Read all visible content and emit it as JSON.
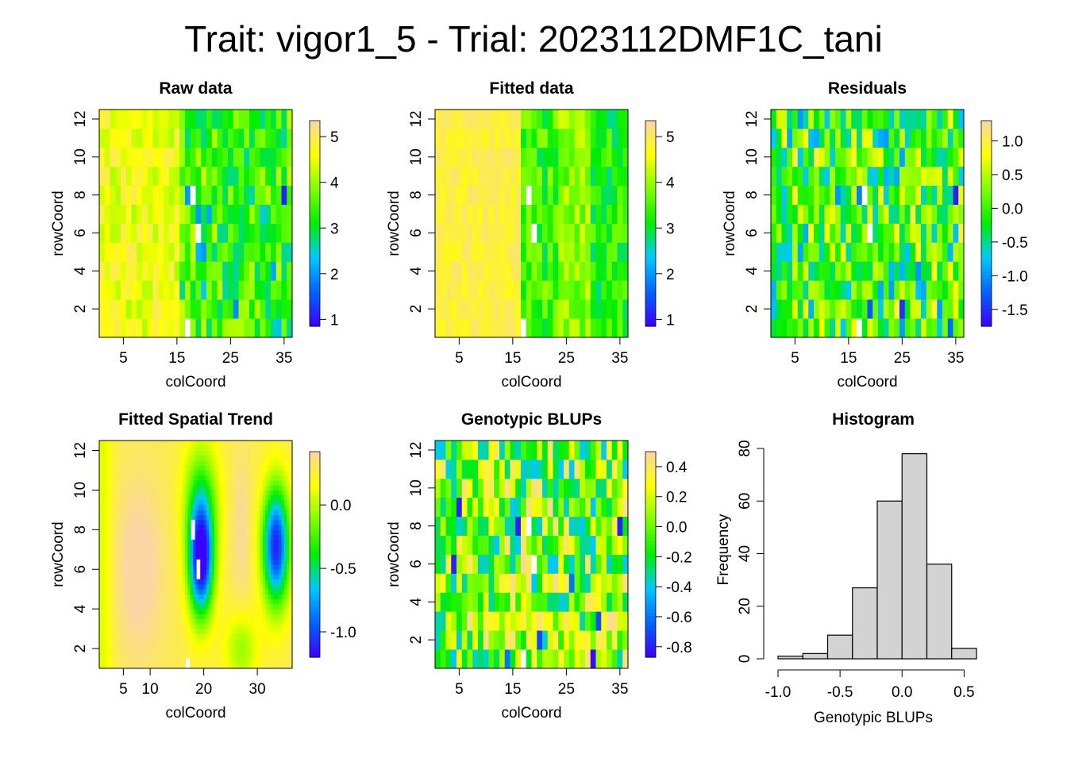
{
  "page": {
    "main_title": "Trait: vigor1_5 - Trial: 2023112DMF1C_tani"
  },
  "colors": {
    "ramp": [
      "#FAD6A5",
      "#FFFF00",
      "#7FFF00",
      "#00EE00",
      "#00C8FF",
      "#0064FF",
      "#3C00FF"
    ],
    "missing": "#FFFFFF",
    "histogram_fill": "#D3D3D3"
  },
  "chart_data": [
    {
      "id": "raw",
      "type": "heatmap",
      "title": "Raw data",
      "xlabel": "colCoord",
      "ylabel": "rowCoord",
      "xlim": [
        0.5,
        36.5
      ],
      "ylim": [
        0.5,
        12.5
      ],
      "x_ticks": [
        5,
        15,
        25,
        35
      ],
      "y_ticks": [
        2,
        4,
        6,
        8,
        10,
        12
      ],
      "ncols": 36,
      "nrows": 12,
      "legend_range": [
        0.85,
        5.35
      ],
      "legend_ticks": [
        {
          "v": 1,
          "label": "1"
        },
        {
          "v": 2,
          "label": "2"
        },
        {
          "v": 3,
          "label": "3"
        },
        {
          "v": 4,
          "label": "4"
        },
        {
          "v": 5,
          "label": "5"
        }
      ],
      "missing_cells": [
        [
          17,
          1
        ],
        [
          18,
          8
        ],
        [
          19,
          6
        ]
      ],
      "low_cells": [
        [
          17,
          8,
          2.0
        ],
        [
          19,
          7,
          2.0
        ],
        [
          21,
          7,
          2.1
        ],
        [
          20,
          5,
          2.0
        ],
        [
          19,
          5,
          2.2
        ],
        [
          26,
          2,
          1.9
        ],
        [
          33,
          4,
          2.1
        ],
        [
          34,
          1,
          2.3
        ],
        [
          35,
          8,
          1.1
        ],
        [
          20,
          3,
          2.4
        ],
        [
          31,
          7,
          2.4
        ]
      ]
    },
    {
      "id": "fitted",
      "type": "heatmap",
      "title": "Fitted data",
      "xlabel": "colCoord",
      "ylabel": "rowCoord",
      "xlim": [
        0.5,
        36.5
      ],
      "ylim": [
        0.5,
        12.5
      ],
      "x_ticks": [
        5,
        15,
        25,
        35
      ],
      "y_ticks": [
        2,
        4,
        6,
        8,
        10,
        12
      ],
      "ncols": 36,
      "nrows": 12,
      "legend_range": [
        0.85,
        5.35
      ],
      "legend_ticks": [
        {
          "v": 1,
          "label": "1"
        },
        {
          "v": 2,
          "label": "2"
        },
        {
          "v": 3,
          "label": "3"
        },
        {
          "v": 4,
          "label": "4"
        },
        {
          "v": 5,
          "label": "5"
        }
      ],
      "missing_cells": [
        [
          17,
          1
        ],
        [
          18,
          8
        ],
        [
          19,
          6
        ]
      ],
      "low_cells": []
    },
    {
      "id": "residuals",
      "type": "heatmap",
      "title": "Residuals",
      "xlabel": "colCoord",
      "ylabel": "rowCoord",
      "xlim": [
        0.5,
        36.5
      ],
      "ylim": [
        0.5,
        12.5
      ],
      "x_ticks": [
        5,
        15,
        25,
        35
      ],
      "y_ticks": [
        2,
        4,
        6,
        8,
        10,
        12
      ],
      "ncols": 36,
      "nrows": 12,
      "legend_range": [
        -1.75,
        1.3
      ],
      "legend_ticks": [
        {
          "v": 1.0,
          "label": "1.0"
        },
        {
          "v": 0.5,
          "label": "0.5"
        },
        {
          "v": 0.0,
          "label": "0.0"
        },
        {
          "v": -0.5,
          "label": "-0.5"
        },
        {
          "v": -1.0,
          "label": "-1.0"
        },
        {
          "v": -1.5,
          "label": "-1.5"
        }
      ],
      "missing_cells": [
        [
          17,
          1
        ],
        [
          18,
          8
        ],
        [
          19,
          6
        ]
      ],
      "low_cells": [
        [
          13,
          8,
          -1.0
        ],
        [
          17,
          8,
          -1.1
        ],
        [
          35,
          8,
          -1.6
        ],
        [
          19,
          2,
          -1.3
        ],
        [
          25,
          2,
          -1.5
        ],
        [
          34,
          1,
          -1.2
        ],
        [
          28,
          4,
          -1.0
        ],
        [
          29,
          3,
          -0.9
        ]
      ]
    },
    {
      "id": "spatial",
      "type": "heatmap",
      "title": "Fitted Spatial Trend",
      "xlabel": "colCoord",
      "ylabel": "rowCoord",
      "xlim": [
        0.5,
        36.5
      ],
      "ylim": [
        1,
        12.5
      ],
      "x_ticks": [
        5,
        10,
        20,
        30
      ],
      "y_ticks": [
        2,
        4,
        6,
        8,
        10,
        12
      ],
      "legend_range": [
        -1.2,
        0.42
      ],
      "legend_ticks": [
        {
          "v": 0.0,
          "label": "0.0"
        },
        {
          "v": -0.5,
          "label": "-0.5"
        },
        {
          "v": -1.0,
          "label": "-1.0"
        }
      ],
      "missing_cells": [
        [
          18,
          8
        ],
        [
          19,
          6
        ],
        [
          17,
          1
        ]
      ]
    },
    {
      "id": "blups",
      "type": "heatmap",
      "title": "Genotypic BLUPs",
      "xlabel": "colCoord",
      "ylabel": "rowCoord",
      "xlim": [
        0.5,
        36.5
      ],
      "ylim": [
        0.5,
        12.5
      ],
      "x_ticks": [
        5,
        15,
        25,
        35
      ],
      "y_ticks": [
        2,
        4,
        6,
        8,
        10,
        12
      ],
      "ncols": 36,
      "nrows": 12,
      "legend_range": [
        -0.87,
        0.5
      ],
      "legend_ticks": [
        {
          "v": 0.4,
          "label": "0.4"
        },
        {
          "v": 0.2,
          "label": "0.2"
        },
        {
          "v": 0.0,
          "label": "0.0"
        },
        {
          "v": -0.2,
          "label": "-0.2"
        },
        {
          "v": -0.4,
          "label": "-0.4"
        },
        {
          "v": -0.6,
          "label": "-0.6"
        },
        {
          "v": -0.8,
          "label": "-0.8"
        }
      ],
      "missing_cells": [
        [
          17,
          1
        ],
        [
          18,
          8
        ],
        [
          19,
          6
        ]
      ],
      "low_cells": [
        [
          5,
          9,
          -0.8
        ],
        [
          4,
          6,
          -0.8
        ],
        [
          16,
          8,
          -0.8
        ],
        [
          30,
          1,
          -0.85
        ],
        [
          35,
          8,
          -0.8
        ],
        [
          31,
          3,
          -0.7
        ],
        [
          20,
          2,
          -0.7
        ],
        [
          26,
          5,
          -0.6
        ],
        [
          14,
          1,
          -0.6
        ]
      ]
    },
    {
      "id": "histogram",
      "type": "bar",
      "title": "Histogram",
      "xlabel": "Genotypic BLUPs",
      "ylabel": "Frequency",
      "xlim": [
        -1.0,
        0.6
      ],
      "ylim": [
        0,
        80
      ],
      "x_ticks": [
        {
          "v": -1.0,
          "label": "-1.0"
        },
        {
          "v": -0.5,
          "label": "-0.5"
        },
        {
          "v": 0.0,
          "label": "0.0"
        },
        {
          "v": 0.5,
          "label": "0.5"
        }
      ],
      "y_ticks": [
        0,
        20,
        40,
        60,
        80
      ],
      "bins": [
        [
          -1.0,
          -0.8
        ],
        [
          -0.8,
          -0.6
        ],
        [
          -0.6,
          -0.4
        ],
        [
          -0.4,
          -0.2
        ],
        [
          -0.2,
          0.0
        ],
        [
          0.0,
          0.2
        ],
        [
          0.2,
          0.4
        ],
        [
          0.4,
          0.6
        ]
      ],
      "values": [
        1,
        2,
        9,
        27,
        60,
        78,
        36,
        4
      ]
    }
  ]
}
